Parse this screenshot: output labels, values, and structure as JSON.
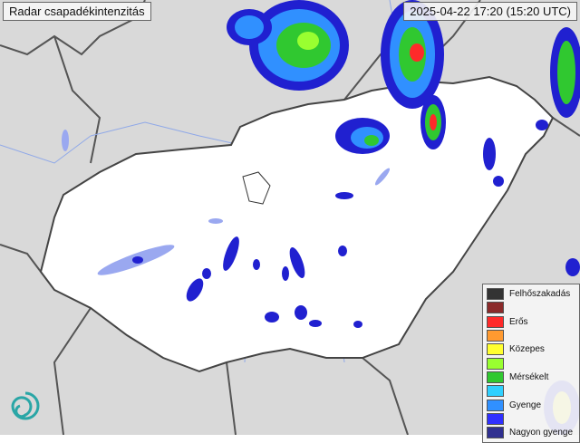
{
  "header": {
    "title": "Radar csapadékintenzitás",
    "timestamp": "2025-04-22 17:20 (15:20 UTC)"
  },
  "legend": {
    "items": [
      {
        "label": "Felhőszakadás",
        "color": "#333333"
      },
      {
        "label": "",
        "color": "#8b2a2a"
      },
      {
        "label": "Erős",
        "color": "#ff2a2a"
      },
      {
        "label": "",
        "color": "#ff9a30"
      },
      {
        "label": "Közepes",
        "color": "#ffff30"
      },
      {
        "label": "",
        "color": "#99ff30"
      },
      {
        "label": "Mérsékelt",
        "color": "#30c830"
      },
      {
        "label": "",
        "color": "#30d0ff"
      },
      {
        "label": "Gyenge",
        "color": "#3090ff"
      },
      {
        "label": "",
        "color": "#3030ff"
      },
      {
        "label": "Nagyon gyenge",
        "color": "#303090"
      }
    ]
  },
  "logo": {
    "icon": "omsz-spiral-logo",
    "color": "#2aa6a6"
  }
}
